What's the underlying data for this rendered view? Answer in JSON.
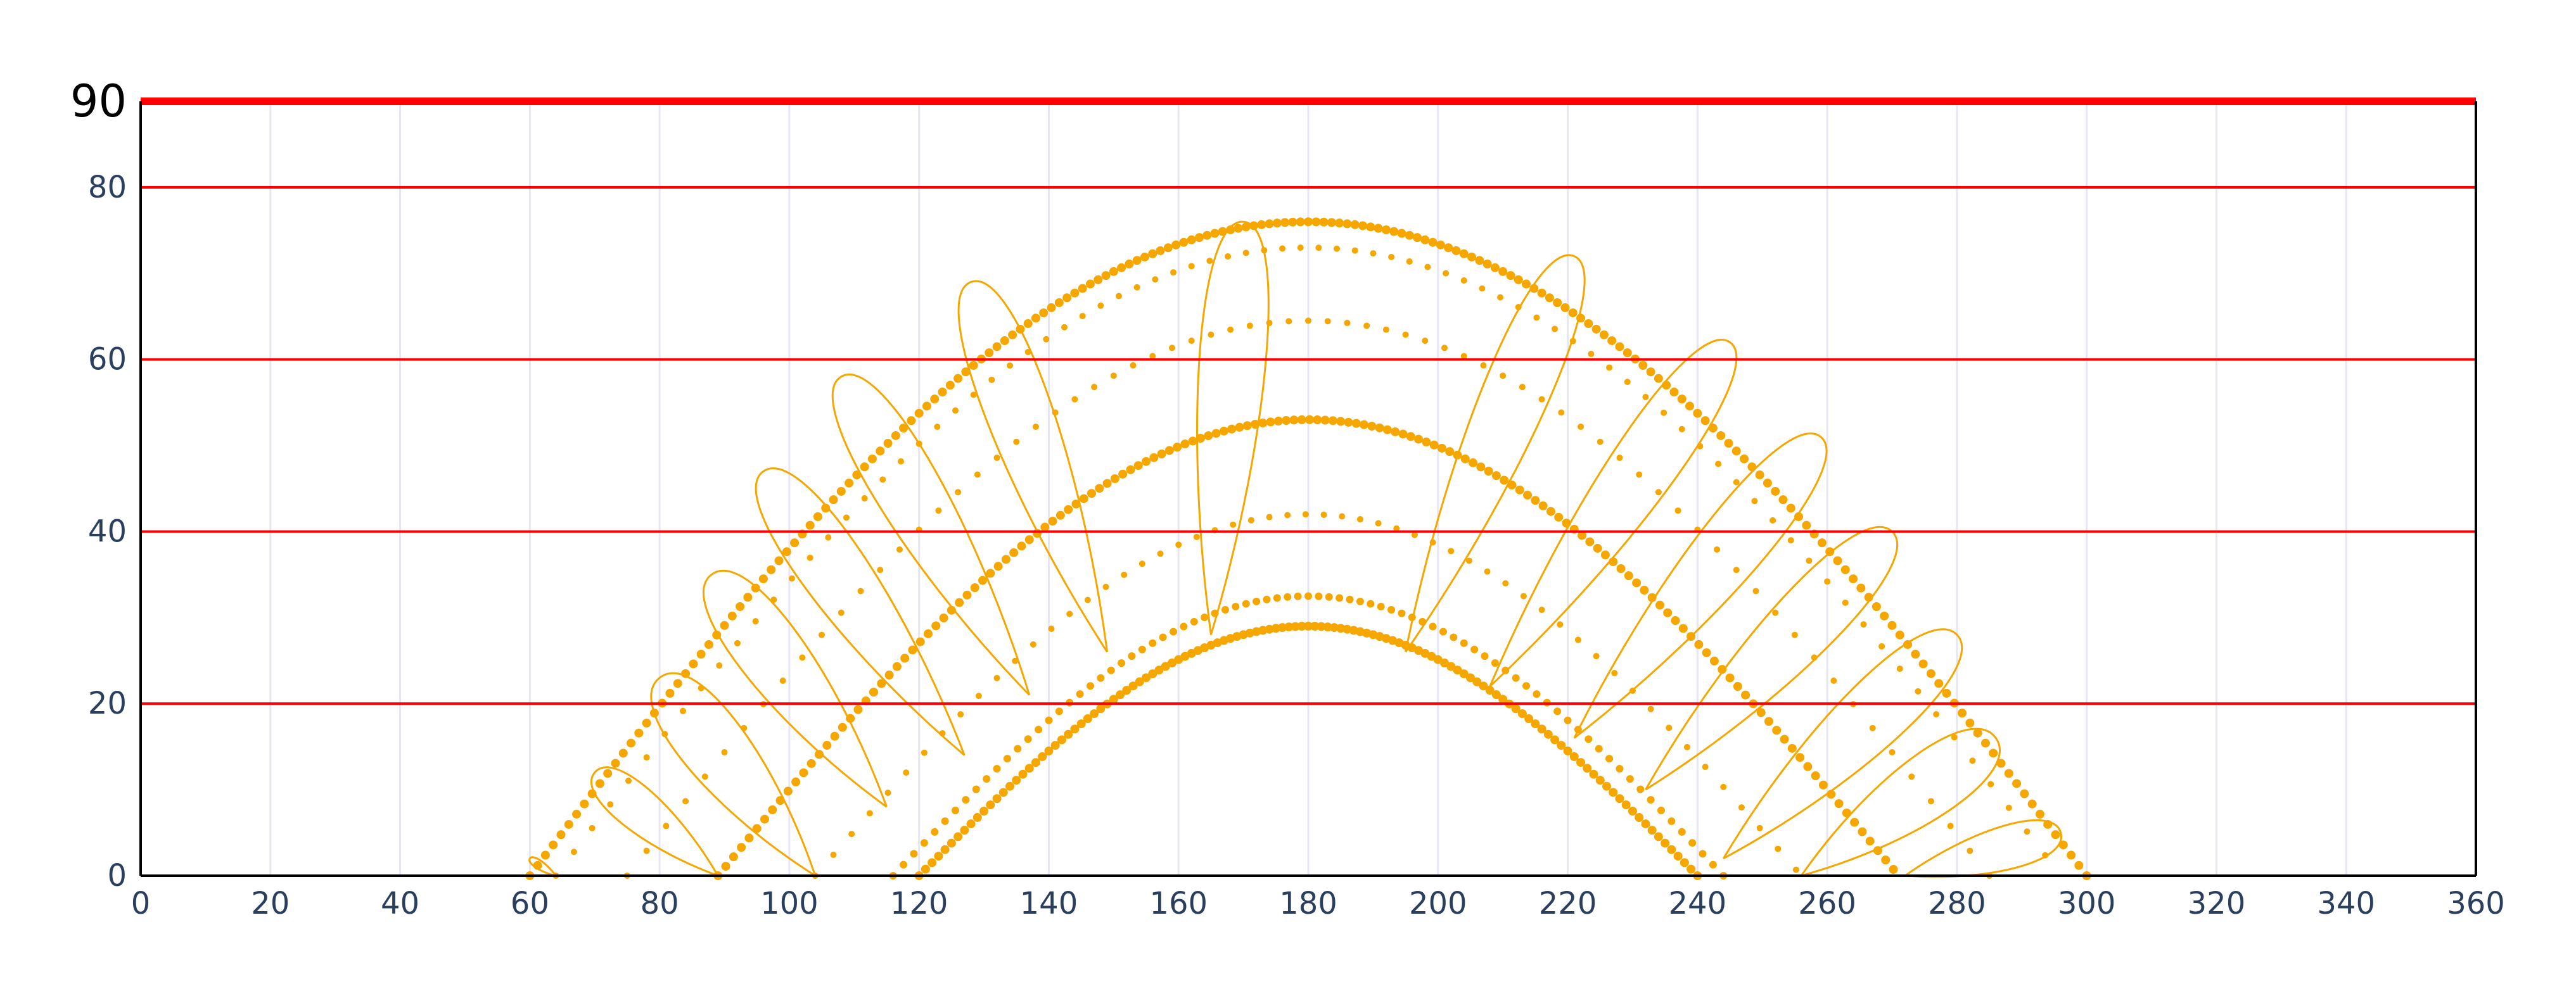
{
  "chart_data": {
    "type": "scatter",
    "title": "",
    "xlabel": "",
    "ylabel": "",
    "xlim": [
      0,
      360
    ],
    "ylim": [
      0,
      90
    ],
    "x_ticks": [
      0,
      20,
      40,
      60,
      80,
      100,
      120,
      140,
      160,
      180,
      200,
      220,
      240,
      260,
      280,
      300,
      320,
      340,
      360
    ],
    "y_ticks": [
      0,
      20,
      40,
      60,
      80
    ],
    "y_top_label": "90",
    "grid": true,
    "horizontal_reference_lines": [
      20,
      40,
      60,
      80,
      90
    ],
    "colors": {
      "series": "#f5a700",
      "reference_line": "#ff0000",
      "vertical_grid": "#e6e6f5",
      "axis": "#000000",
      "tick_text": "#2a3f5f"
    },
    "arc_series": [
      {
        "start": 60,
        "end": 300,
        "peak": 76,
        "marker_size": 7,
        "spacing": 1.2
      },
      {
        "start": 64,
        "end": 296,
        "peak": 73,
        "marker_size": 5,
        "spacing": 2.8
      },
      {
        "start": 75,
        "end": 285,
        "peak": 64.5,
        "marker_size": 5,
        "spacing": 3.0
      },
      {
        "start": 89,
        "end": 271,
        "peak": 53,
        "marker_size": 7,
        "spacing": 1.2
      },
      {
        "start": 104,
        "end": 256,
        "peak": 42,
        "marker_size": 5,
        "spacing": 2.8
      },
      {
        "start": 116,
        "end": 244,
        "peak": 32.5,
        "marker_size": 6,
        "spacing": 1.6
      },
      {
        "start": 120,
        "end": 240,
        "peak": 29,
        "marker_size": 7,
        "spacing": 1.0
      }
    ],
    "loop_series": [
      {
        "x0": 64,
        "x1": 60,
        "y0": 0,
        "y1": 2
      },
      {
        "x0": 89,
        "x1": 70,
        "y0": 0,
        "y1": 12
      },
      {
        "x0": 104,
        "x1": 80,
        "y0": 0,
        "y1": 23
      },
      {
        "x0": 115,
        "x1": 88,
        "y0": 8,
        "y1": 35
      },
      {
        "x0": 127,
        "x1": 96,
        "y0": 14,
        "y1": 47
      },
      {
        "x0": 137,
        "x1": 108,
        "y0": 21,
        "y1": 58
      },
      {
        "x0": 149,
        "x1": 128,
        "y0": 26,
        "y1": 69
      },
      {
        "x0": 165,
        "x1": 170,
        "y0": 28,
        "y1": 76
      },
      {
        "x0": 195,
        "x1": 221,
        "y0": 26,
        "y1": 72
      },
      {
        "x0": 208,
        "x1": 245,
        "y0": 22,
        "y1": 62
      },
      {
        "x0": 221,
        "x1": 259,
        "y0": 16,
        "y1": 51
      },
      {
        "x0": 232,
        "x1": 270,
        "y0": 10,
        "y1": 40
      },
      {
        "x0": 244,
        "x1": 280,
        "y0": 2,
        "y1": 28
      },
      {
        "x0": 256,
        "x1": 286,
        "y0": 0,
        "y1": 16
      },
      {
        "x0": 272,
        "x1": 296,
        "y0": 0,
        "y1": 5
      }
    ]
  }
}
